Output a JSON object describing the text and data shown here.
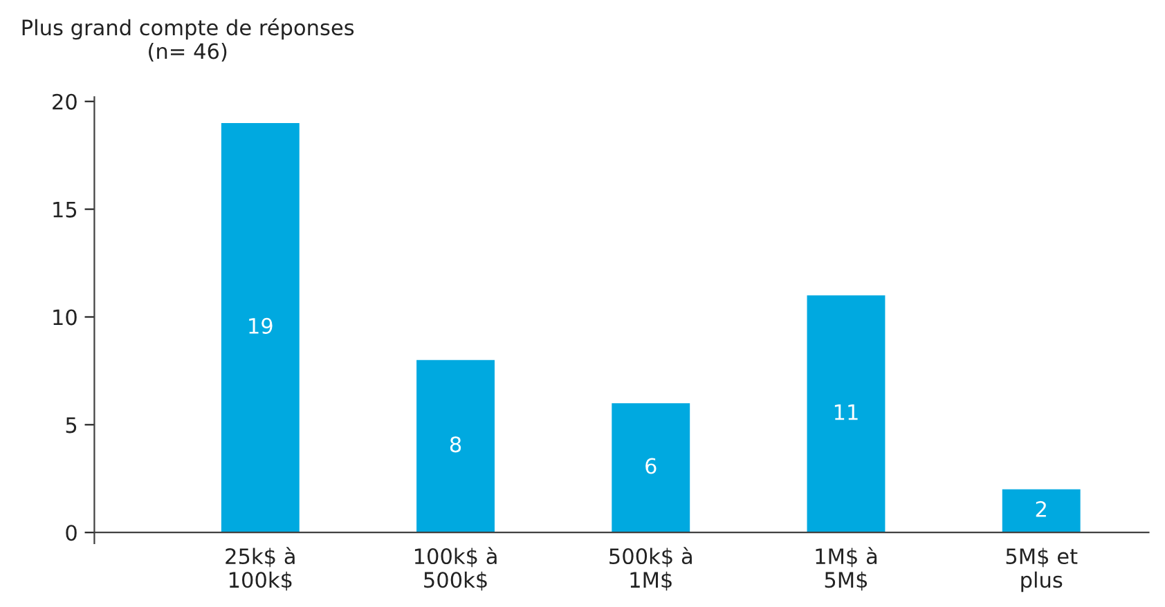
{
  "chart_data": {
    "type": "bar",
    "title": "Plus grand compte de réponses\n(n= 46)",
    "categories": [
      "25k$ à\n100k$",
      "100k$ à\n500k$",
      "500k$ à\n1M$",
      "1M$ à\n5M$",
      "5M$ et\nplus"
    ],
    "values": [
      19,
      8,
      6,
      11,
      2
    ],
    "color": "#00a9e0",
    "ylim": [
      -0.5,
      20.2
    ],
    "yticks": [
      0,
      5,
      10,
      15,
      20
    ],
    "grid": false,
    "data_labels": true
  }
}
